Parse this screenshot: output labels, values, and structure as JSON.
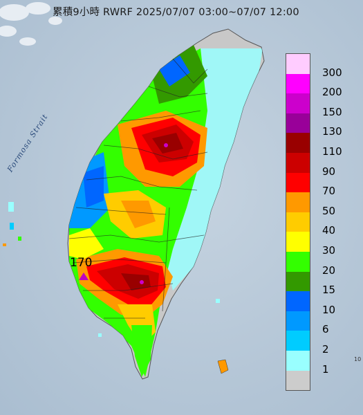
{
  "title": "累積9小時 RWRF 2025/07/07 03:00~07/07 12:00",
  "strait_label": "Formosa Strait",
  "max_label": "170",
  "corner_label": "10",
  "legend": [
    {
      "label": "300",
      "color": "#ffccff"
    },
    {
      "label": "200",
      "color": "#ff00ff"
    },
    {
      "label": "150",
      "color": "#cc00cc"
    },
    {
      "label": "130",
      "color": "#990099"
    },
    {
      "label": "110",
      "color": "#990000"
    },
    {
      "label": "90",
      "color": "#cc0000"
    },
    {
      "label": "70",
      "color": "#ff0000"
    },
    {
      "label": "50",
      "color": "#ff9900"
    },
    {
      "label": "40",
      "color": "#ffcc00"
    },
    {
      "label": "30",
      "color": "#ffff00"
    },
    {
      "label": "20",
      "color": "#33ff00"
    },
    {
      "label": "15",
      "color": "#339900"
    },
    {
      "label": "10",
      "color": "#0066ff"
    },
    {
      "label": "6",
      "color": "#0099ff"
    },
    {
      "label": "2",
      "color": "#00ccff"
    },
    {
      "label": "1",
      "color": "#99ffff"
    },
    {
      "label": "",
      "color": "#cccccc"
    }
  ]
}
